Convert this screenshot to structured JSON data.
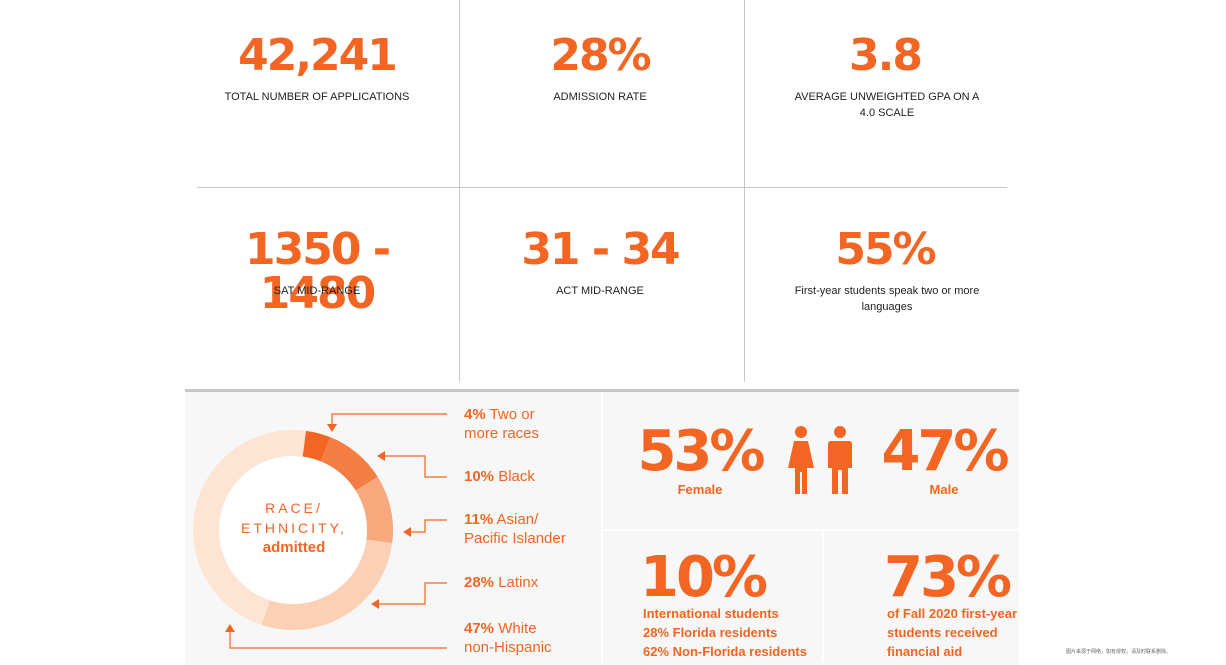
{
  "stats": [
    {
      "value": "42,241",
      "label": "TOTAL NUMBER OF APPLICATIONS"
    },
    {
      "value": "28%",
      "label": "ADMISSION RATE"
    },
    {
      "value": "3.8",
      "label": "AVERAGE UNWEIGHTED GPA ON A 4.0 SCALE"
    },
    {
      "value": "1350 - 1480",
      "label": "SAT MID-RANGE"
    },
    {
      "value": "31 - 34",
      "label": "ACT MID-RANGE"
    },
    {
      "value": "55%",
      "label": "First-year students speak two or more languages"
    }
  ],
  "chart_data": {
    "type": "pie",
    "title": "RACE/ ETHNICITY,",
    "subtitle": "admitted",
    "categories": [
      "Two or more races",
      "Black",
      "Asian/ Pacific Islander",
      "Latinx",
      "White non-Hispanic"
    ],
    "values": [
      4,
      10,
      11,
      28,
      47
    ],
    "colors": [
      "#f26522",
      "#f47d44",
      "#f9a77c",
      "#fcd0b4",
      "#fde4d3"
    ],
    "legend": [
      {
        "pct": "4%",
        "name": "Two or",
        "name2": "more races"
      },
      {
        "pct": "10%",
        "name": "Black",
        "name2": ""
      },
      {
        "pct": "11%",
        "name": "Asian/",
        "name2": "Pacific Islander"
      },
      {
        "pct": "28%",
        "name": "Latinx",
        "name2": ""
      },
      {
        "pct": "47%",
        "name": "White",
        "name2": "non-Hispanic"
      }
    ]
  },
  "gender": {
    "female_pct": "53%",
    "female_label": "Female",
    "male_pct": "47%",
    "male_label": "Male"
  },
  "international": {
    "pct": "10%",
    "line1": "International students",
    "line2": "28% Florida residents",
    "line3": "62% Non-Florida residents"
  },
  "aid": {
    "pct": "73%",
    "line1": "of Fall 2020 first-year",
    "line2": "students received",
    "line3": "financial aid"
  },
  "footnote": "图片来源于网络，如有侵权，请及时联系删除。",
  "colors": {
    "accent": "#f26522",
    "panel": "#f7f7f7",
    "divider": "#c8c8c8"
  }
}
